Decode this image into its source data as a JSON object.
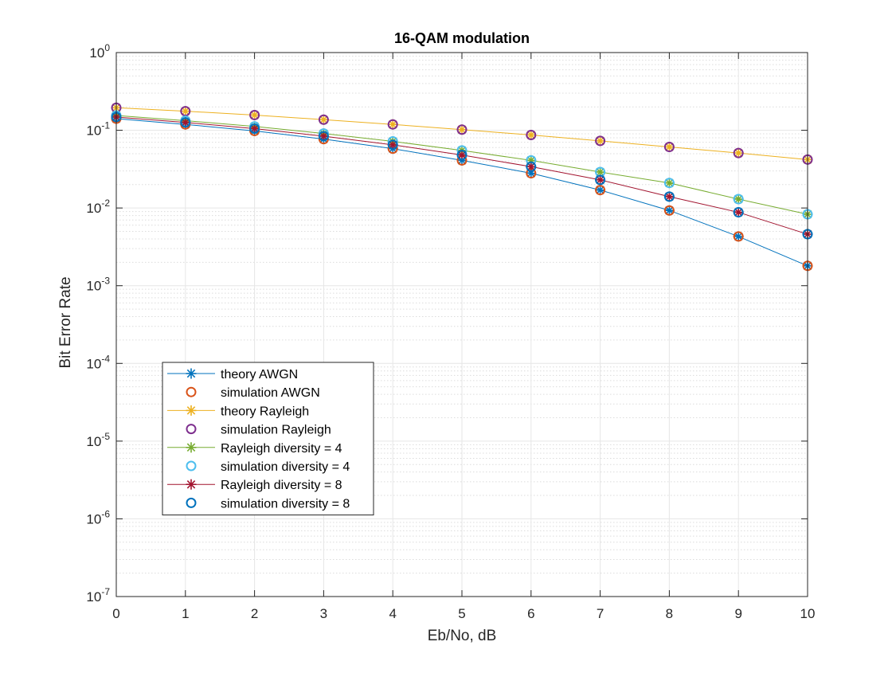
{
  "chart_data": {
    "type": "line",
    "title": "16-QAM modulation",
    "xlabel": "Eb/No, dB",
    "ylabel": "Bit Error Rate",
    "xlim": [
      0,
      10
    ],
    "ylim": [
      1e-07,
      1
    ],
    "yscale": "log",
    "grid": true,
    "minor_grid": true,
    "legend_position": "lower-left",
    "x_ticks": [
      "0",
      "1",
      "2",
      "3",
      "4",
      "5",
      "6",
      "7",
      "8",
      "9",
      "10"
    ],
    "y_ticks": [
      {
        "base": "10",
        "exp": "-7"
      },
      {
        "base": "10",
        "exp": "-6"
      },
      {
        "base": "10",
        "exp": "-5"
      },
      {
        "base": "10",
        "exp": "-4"
      },
      {
        "base": "10",
        "exp": "-3"
      },
      {
        "base": "10",
        "exp": "-2"
      },
      {
        "base": "10",
        "exp": "-1"
      },
      {
        "base": "10",
        "exp": "0"
      }
    ],
    "x": [
      0,
      1,
      2,
      3,
      4,
      5,
      6,
      7,
      8,
      9,
      10
    ],
    "series": [
      {
        "name": "theory AWGN",
        "marker": "asterisk",
        "line": true,
        "color": "#0072bd",
        "values": [
          0.141,
          0.119,
          0.098,
          0.077,
          0.058,
          0.041,
          0.028,
          0.017,
          0.0093,
          0.0043,
          0.0018
        ]
      },
      {
        "name": "simulation AWGN",
        "marker": "circle",
        "line": false,
        "color": "#d95319",
        "values": [
          0.141,
          0.119,
          0.098,
          0.077,
          0.058,
          0.041,
          0.028,
          0.017,
          0.0093,
          0.0043,
          0.0018
        ]
      },
      {
        "name": "theory Rayleigh",
        "marker": "asterisk",
        "line": true,
        "color": "#edb120",
        "values": [
          0.195,
          0.176,
          0.157,
          0.137,
          0.119,
          0.102,
          0.087,
          0.073,
          0.061,
          0.051,
          0.042
        ]
      },
      {
        "name": "simulation Rayleigh",
        "marker": "circle",
        "line": false,
        "color": "#7e2f8e",
        "values": [
          0.195,
          0.176,
          0.157,
          0.137,
          0.119,
          0.102,
          0.087,
          0.073,
          0.061,
          0.051,
          0.042
        ]
      },
      {
        "name": "Rayleigh diversity = 4",
        "marker": "asterisk",
        "line": true,
        "color": "#77ac30",
        "values": [
          0.155,
          0.133,
          0.112,
          0.091,
          0.072,
          0.055,
          0.041,
          0.029,
          0.021,
          0.013,
          0.0083
        ]
      },
      {
        "name": "simulation diversity = 4",
        "marker": "circle",
        "line": false,
        "color": "#4dbeee",
        "values": [
          0.155,
          0.133,
          0.112,
          0.091,
          0.072,
          0.055,
          0.041,
          0.029,
          0.021,
          0.013,
          0.0083
        ]
      },
      {
        "name": "Rayleigh diversity = 8",
        "marker": "asterisk",
        "line": true,
        "color": "#a2142f",
        "values": [
          0.148,
          0.126,
          0.105,
          0.084,
          0.065,
          0.048,
          0.034,
          0.023,
          0.014,
          0.0088,
          0.0046
        ]
      },
      {
        "name": "simulation diversity = 8",
        "marker": "circle",
        "line": false,
        "color": "#0072bd",
        "values": [
          0.148,
          0.126,
          0.105,
          0.084,
          0.065,
          0.048,
          0.034,
          0.023,
          0.014,
          0.0088,
          0.0046
        ]
      }
    ]
  }
}
